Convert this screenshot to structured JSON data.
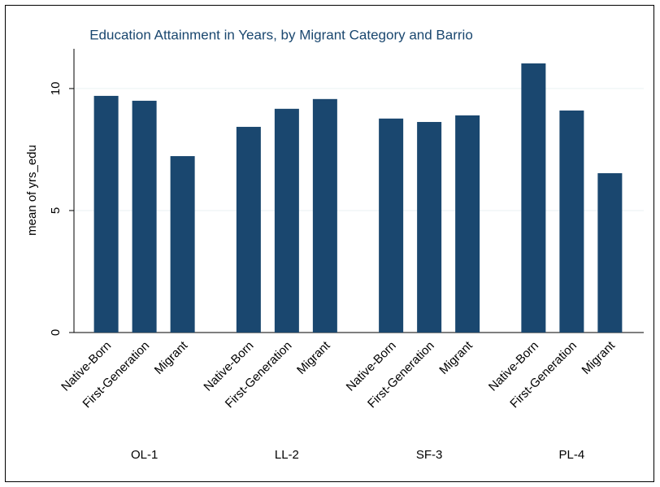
{
  "chart_data": {
    "type": "bar",
    "title": "Education Attainment in Years, by Migrant Category and Barrio",
    "y_label": "mean of yrs_edu",
    "categories": [
      "Native-Born",
      "First-Generation",
      "Migrant"
    ],
    "series": [
      {
        "name": "OL-1",
        "color": "#1a476f",
        "values": [
          9.7,
          9.5,
          7.23
        ]
      },
      {
        "name": "LL-2",
        "color": "#1a476f",
        "values": [
          8.43,
          9.17,
          9.57
        ]
      },
      {
        "name": "SF-3",
        "color": "#1a476f",
        "values": [
          8.77,
          8.63,
          8.9
        ]
      },
      {
        "name": "PL-4",
        "color": "#1a476f",
        "values": [
          11.03,
          9.1,
          6.53
        ]
      }
    ],
    "ylim": [
      0,
      11.63
    ],
    "yticks": [
      0,
      5,
      10
    ],
    "grid": true
  }
}
